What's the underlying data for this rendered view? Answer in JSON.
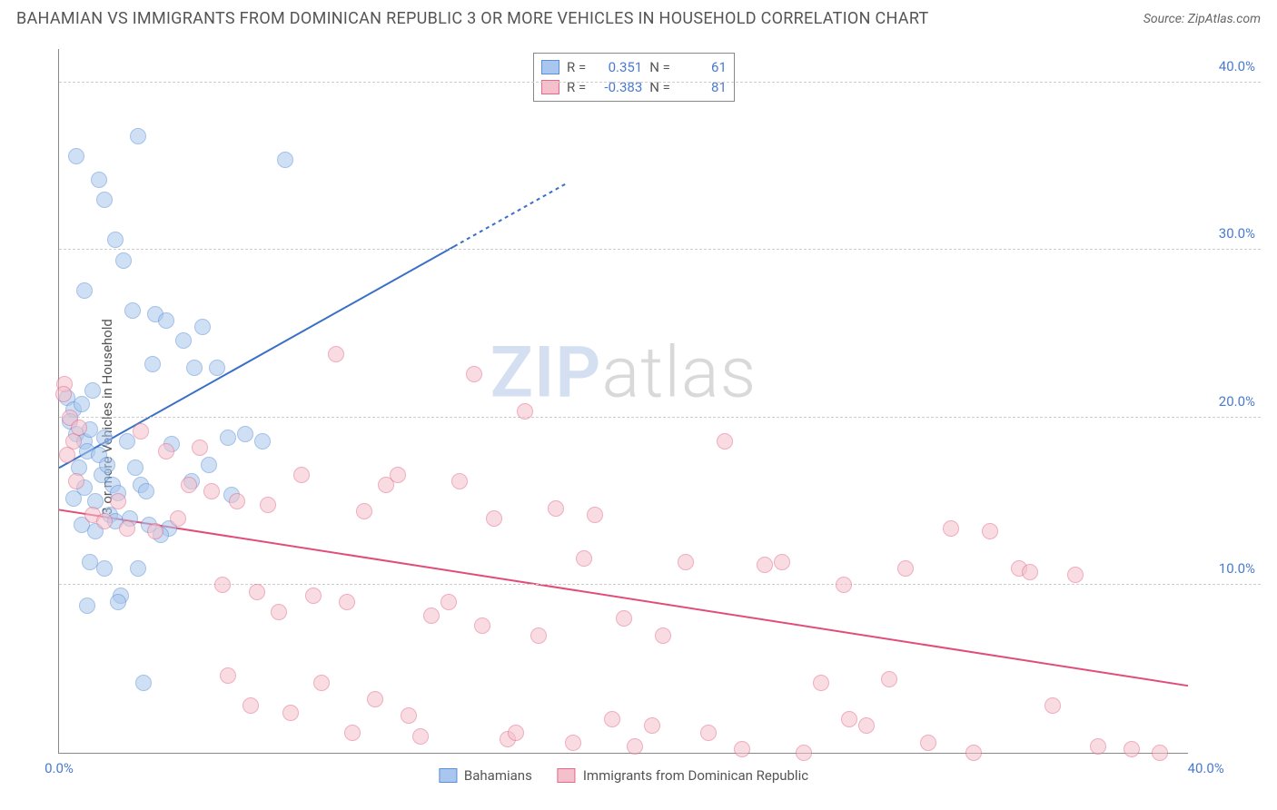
{
  "header": {
    "title": "BAHAMIAN VS IMMIGRANTS FROM DOMINICAN REPUBLIC 3 OR MORE VEHICLES IN HOUSEHOLD CORRELATION CHART",
    "source": "Source: ZipAtlas.com"
  },
  "chart": {
    "type": "scatter",
    "ylabel": "3 or more Vehicles in Household",
    "xlim": [
      0,
      40
    ],
    "ylim": [
      0,
      42
    ],
    "xtick_labels": [
      "0.0%",
      "40.0%"
    ],
    "ytick_values": [
      10,
      20,
      30,
      40
    ],
    "ytick_labels": [
      "10.0%",
      "20.0%",
      "30.0%",
      "40.0%"
    ],
    "background_color": "#ffffff",
    "grid_color": "#cccccc",
    "axis_color": "#888888",
    "tick_label_color": "#4a7bd0",
    "label_color": "#555555",
    "point_radius": 9,
    "point_opacity": 0.55,
    "watermark": {
      "part1": "ZIP",
      "part2": "atlas"
    },
    "series": [
      {
        "key": "bahamians",
        "label": "Bahamians",
        "color_fill": "#a9c7ee",
        "color_stroke": "#5b8fd6",
        "r_value": "0.351",
        "n_value": "61",
        "trend": {
          "x1": 0,
          "y1": 17,
          "x2": 18,
          "y2": 34,
          "dash_after_x": 14,
          "stroke": "#3a6fc7",
          "width": 2
        },
        "points": [
          [
            0.3,
            21.2
          ],
          [
            0.5,
            20.5
          ],
          [
            0.4,
            19.8
          ],
          [
            0.8,
            20.8
          ],
          [
            0.6,
            19.0
          ],
          [
            0.9,
            18.6
          ],
          [
            1.1,
            19.3
          ],
          [
            1.0,
            18.0
          ],
          [
            1.4,
            17.8
          ],
          [
            1.2,
            21.6
          ],
          [
            1.5,
            16.6
          ],
          [
            1.7,
            17.2
          ],
          [
            1.9,
            16.0
          ],
          [
            2.1,
            15.5
          ],
          [
            0.7,
            17.0
          ],
          [
            0.9,
            15.8
          ],
          [
            1.3,
            15.0
          ],
          [
            1.6,
            18.8
          ],
          [
            2.4,
            18.6
          ],
          [
            2.7,
            17.0
          ],
          [
            2.9,
            16.0
          ],
          [
            3.1,
            15.6
          ],
          [
            1.8,
            14.2
          ],
          [
            2.0,
            13.8
          ],
          [
            2.5,
            14.0
          ],
          [
            3.2,
            13.6
          ],
          [
            3.9,
            13.4
          ],
          [
            1.1,
            11.4
          ],
          [
            1.6,
            11.0
          ],
          [
            2.2,
            9.4
          ],
          [
            3.0,
            4.2
          ],
          [
            3.6,
            13.0
          ],
          [
            0.6,
            35.6
          ],
          [
            1.4,
            34.2
          ],
          [
            1.6,
            33.0
          ],
          [
            2.8,
            36.8
          ],
          [
            2.0,
            30.6
          ],
          [
            2.3,
            29.4
          ],
          [
            0.9,
            27.6
          ],
          [
            2.6,
            26.4
          ],
          [
            3.4,
            26.2
          ],
          [
            3.8,
            25.8
          ],
          [
            5.1,
            25.4
          ],
          [
            4.4,
            24.6
          ],
          [
            3.3,
            23.2
          ],
          [
            4.8,
            23.0
          ],
          [
            5.6,
            23.0
          ],
          [
            6.6,
            19.0
          ],
          [
            6.0,
            18.8
          ],
          [
            5.3,
            17.2
          ],
          [
            6.1,
            15.4
          ],
          [
            7.2,
            18.6
          ],
          [
            8.0,
            35.4
          ],
          [
            4.0,
            18.4
          ],
          [
            4.7,
            16.2
          ],
          [
            2.8,
            11.0
          ],
          [
            2.1,
            9.0
          ],
          [
            1.0,
            8.8
          ],
          [
            1.3,
            13.2
          ],
          [
            0.5,
            15.2
          ],
          [
            0.8,
            13.6
          ]
        ]
      },
      {
        "key": "dominican",
        "label": "Immigrants from Dominican Republic",
        "color_fill": "#f4c0cb",
        "color_stroke": "#e36a8b",
        "r_value": "-0.383",
        "n_value": "81",
        "trend": {
          "x1": 0,
          "y1": 14.5,
          "x2": 40,
          "y2": 4.0,
          "stroke": "#e14d78",
          "width": 2
        },
        "points": [
          [
            0.2,
            22.0
          ],
          [
            0.15,
            21.4
          ],
          [
            0.4,
            20.0
          ],
          [
            0.5,
            18.6
          ],
          [
            0.3,
            17.8
          ],
          [
            0.6,
            16.2
          ],
          [
            0.7,
            19.4
          ],
          [
            1.2,
            14.2
          ],
          [
            1.6,
            13.8
          ],
          [
            2.1,
            15.0
          ],
          [
            2.4,
            13.4
          ],
          [
            2.9,
            19.2
          ],
          [
            3.4,
            13.2
          ],
          [
            3.8,
            18.0
          ],
          [
            4.2,
            14.0
          ],
          [
            4.6,
            16.0
          ],
          [
            5.0,
            18.2
          ],
          [
            5.4,
            15.6
          ],
          [
            5.8,
            10.0
          ],
          [
            6.0,
            4.6
          ],
          [
            6.3,
            15.0
          ],
          [
            6.8,
            2.8
          ],
          [
            7.0,
            9.6
          ],
          [
            7.4,
            14.8
          ],
          [
            7.8,
            8.4
          ],
          [
            8.2,
            2.4
          ],
          [
            8.6,
            16.6
          ],
          [
            9.0,
            9.4
          ],
          [
            9.3,
            4.2
          ],
          [
            9.8,
            23.8
          ],
          [
            10.2,
            9.0
          ],
          [
            10.4,
            1.2
          ],
          [
            10.8,
            14.4
          ],
          [
            11.2,
            3.2
          ],
          [
            11.6,
            16.0
          ],
          [
            12.0,
            16.6
          ],
          [
            12.4,
            2.2
          ],
          [
            12.8,
            1.0
          ],
          [
            13.2,
            8.2
          ],
          [
            13.8,
            9.0
          ],
          [
            14.2,
            16.2
          ],
          [
            14.7,
            22.6
          ],
          [
            15.0,
            7.6
          ],
          [
            15.4,
            14.0
          ],
          [
            15.9,
            0.8
          ],
          [
            16.2,
            1.2
          ],
          [
            16.5,
            20.4
          ],
          [
            17.0,
            7.0
          ],
          [
            17.6,
            14.6
          ],
          [
            18.2,
            0.6
          ],
          [
            18.6,
            11.6
          ],
          [
            19.0,
            14.2
          ],
          [
            19.6,
            2.0
          ],
          [
            20.0,
            8.0
          ],
          [
            20.4,
            0.4
          ],
          [
            21.0,
            1.6
          ],
          [
            21.4,
            7.0
          ],
          [
            22.2,
            11.4
          ],
          [
            23.0,
            1.2
          ],
          [
            23.6,
            18.6
          ],
          [
            24.2,
            0.2
          ],
          [
            25.0,
            11.2
          ],
          [
            25.6,
            11.4
          ],
          [
            26.4,
            0.0
          ],
          [
            27.0,
            4.2
          ],
          [
            28.0,
            2.0
          ],
          [
            28.6,
            1.6
          ],
          [
            29.4,
            4.4
          ],
          [
            30.0,
            11.0
          ],
          [
            30.8,
            0.6
          ],
          [
            31.6,
            13.4
          ],
          [
            32.4,
            0.0
          ],
          [
            33.0,
            13.2
          ],
          [
            34.0,
            11.0
          ],
          [
            34.4,
            10.8
          ],
          [
            35.2,
            2.8
          ],
          [
            36.0,
            10.6
          ],
          [
            38.0,
            0.2
          ],
          [
            39.0,
            0.0
          ],
          [
            36.8,
            0.4
          ],
          [
            27.8,
            10.0
          ]
        ]
      }
    ],
    "rn_labels": {
      "r": "R =",
      "n": "N ="
    },
    "legend_swatch": {
      "w": 20,
      "h": 16
    }
  }
}
